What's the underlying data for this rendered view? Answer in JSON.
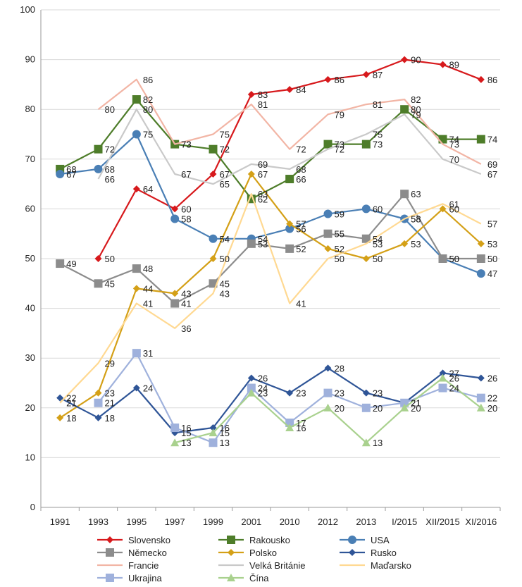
{
  "chart_data": {
    "type": "line",
    "categories": [
      "1991",
      "1993",
      "1995",
      "1997",
      "1999",
      "2001",
      "2010",
      "2012",
      "2013",
      "I/2015",
      "XII/2015",
      "XI/2016"
    ],
    "ylim": [
      0,
      100
    ],
    "yticks": [
      0,
      10,
      20,
      30,
      40,
      50,
      60,
      70,
      80,
      90,
      100
    ],
    "grid": "horizontal",
    "legend_position": "bottom",
    "series": [
      {
        "name": "Slovensko",
        "color": "#d7191c",
        "marker": "diamond",
        "values": [
          null,
          50,
          64,
          60,
          67,
          83,
          84,
          86,
          87,
          90,
          89,
          86
        ]
      },
      {
        "name": "Rakousko",
        "color": "#4e7d2a",
        "marker": "square",
        "values": [
          68,
          72,
          82,
          73,
          72,
          62,
          66,
          73,
          73,
          80,
          74,
          74
        ]
      },
      {
        "name": "USA",
        "color": "#4a7fb5",
        "marker": "circle",
        "values": [
          67,
          68,
          75,
          58,
          54,
          54,
          56,
          59,
          60,
          58,
          50,
          47
        ]
      },
      {
        "name": "Německo",
        "color": "#8c8c8c",
        "marker": "square",
        "values": [
          49,
          45,
          48,
          41,
          45,
          53,
          52,
          55,
          54,
          63,
          50,
          50
        ]
      },
      {
        "name": "Polsko",
        "color": "#d4a017",
        "marker": "diamond",
        "values": [
          18,
          23,
          44,
          43,
          50,
          67,
          57,
          52,
          50,
          53,
          60,
          53
        ]
      },
      {
        "name": "Rusko",
        "color": "#2f5597",
        "marker": "diamond",
        "values": [
          22,
          18,
          24,
          15,
          16,
          26,
          23,
          28,
          23,
          21,
          27,
          26
        ]
      },
      {
        "name": "Francie",
        "color": "#f2b5a5",
        "marker": "none",
        "values": [
          null,
          80,
          86,
          73,
          75,
          81,
          72,
          79,
          81,
          82,
          73,
          69
        ]
      },
      {
        "name": "Velká Británie",
        "color": "#c9c9c9",
        "marker": "none",
        "values": [
          null,
          66,
          80,
          67,
          65,
          69,
          68,
          72,
          75,
          79,
          70,
          67
        ]
      },
      {
        "name": "Maďarsko",
        "color": "#ffd992",
        "marker": "none",
        "values": [
          21,
          29,
          41,
          36,
          43,
          63,
          41,
          50,
          53,
          58,
          61,
          57
        ]
      },
      {
        "name": "Ukrajina",
        "color": "#9fb1dc",
        "marker": "square",
        "values": [
          null,
          21,
          31,
          16,
          13,
          24,
          17,
          23,
          20,
          21,
          24,
          22
        ]
      },
      {
        "name": "Čína",
        "color": "#a9d18e",
        "marker": "triangle",
        "values": [
          null,
          null,
          null,
          13,
          15,
          23,
          16,
          20,
          13,
          20,
          26,
          20
        ]
      }
    ]
  }
}
